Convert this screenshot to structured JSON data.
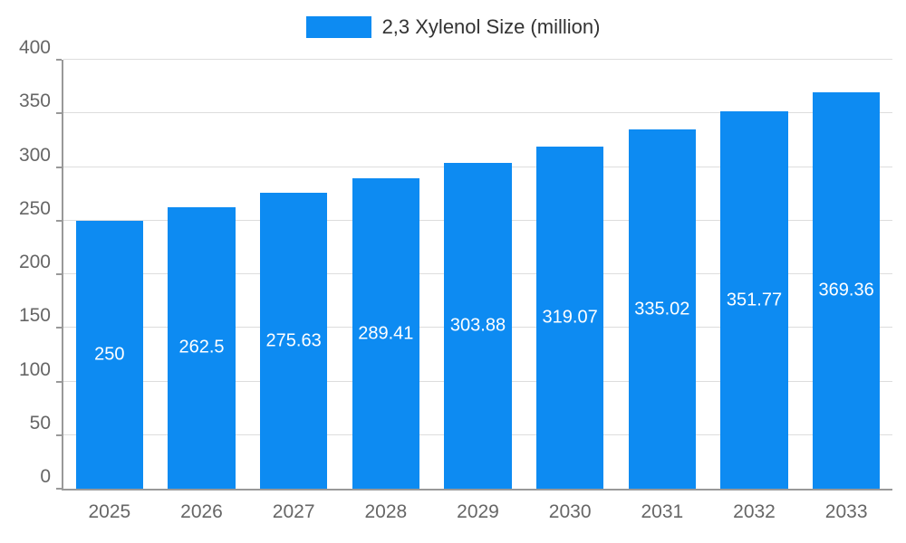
{
  "legend": {
    "label": "2,3 Xylenol Size (million)"
  },
  "colors": {
    "bar": "#0D8BF2",
    "bar_label": "#ffffff",
    "axis_line": "#999999",
    "gridline": "#dddddd",
    "tick_text": "#666666",
    "legend_text": "#333333"
  },
  "chart_data": {
    "type": "bar",
    "title": "",
    "xlabel": "",
    "ylabel": "",
    "categories": [
      "2025",
      "2026",
      "2027",
      "2028",
      "2029",
      "2030",
      "2031",
      "2032",
      "2033"
    ],
    "series": [
      {
        "name": "2,3 Xylenol Size (million)",
        "values": [
          250,
          262.5,
          275.63,
          289.41,
          303.88,
          319.07,
          335.02,
          351.77,
          369.36
        ],
        "data_labels": [
          "250",
          "262.5",
          "275.63",
          "289.41",
          "303.88",
          "319.07",
          "335.02",
          "351.77",
          "369.36"
        ]
      }
    ],
    "ylim": [
      0,
      400
    ],
    "ytick_step": 50,
    "ytick_labels": [
      "0",
      "50",
      "100",
      "150",
      "200",
      "250",
      "300",
      "350",
      "400"
    ],
    "grid": true,
    "legend_position": "top",
    "bar_band_fraction": 0.73
  }
}
